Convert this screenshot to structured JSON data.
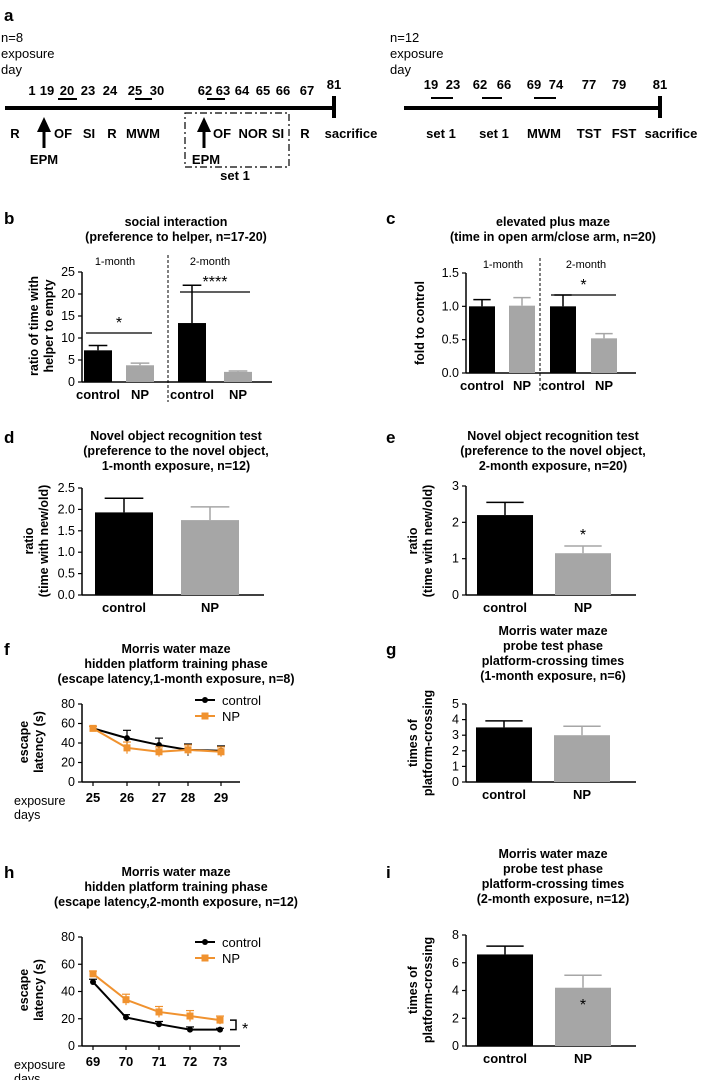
{
  "timeline": {
    "panel_label": "a",
    "left": {
      "n_label": "n=8",
      "exposure_label": "exposure",
      "day_label": "day",
      "days": [
        "1",
        "19",
        "20",
        "23",
        "24",
        "25",
        "30",
        "62",
        "63",
        "64",
        "65",
        "66",
        "67",
        "81"
      ],
      "events": [
        "R",
        "OF",
        "SI",
        "R",
        "MWM",
        "OF",
        "NOR",
        "SI",
        "R",
        "sacrifice"
      ],
      "epm1": "EPM",
      "epm2": "EPM",
      "set_label": "set 1"
    },
    "right": {
      "n_label": "n=12",
      "exposure_label": "exposure",
      "day_label": "day",
      "days": [
        "19",
        "23",
        "62",
        "66",
        "69",
        "74",
        "77",
        "79",
        "81"
      ],
      "events": [
        "set 1",
        "set 1",
        "MWM",
        "TST",
        "FST",
        "sacrifice"
      ]
    }
  },
  "chart_data": [
    {
      "panel": "b",
      "type": "bar",
      "title": [
        "social interaction",
        "(preference to helper, n=17-20)"
      ],
      "ylabel": [
        "ratio of time with",
        "helper to empty"
      ],
      "ylim": [
        0,
        25
      ],
      "yticks": [
        "0",
        "5",
        "10",
        "15",
        "20",
        "25"
      ],
      "categories": [
        "control",
        "NP",
        "control",
        "NP"
      ],
      "values": [
        7.2,
        3.8,
        13.4,
        2.3
      ],
      "errors": [
        1.1,
        0.5,
        8.6,
        0.2
      ],
      "colors": [
        "#000000",
        "#a6a6a6",
        "#000000",
        "#a6a6a6"
      ],
      "groups": [
        "1-month",
        "2-month"
      ],
      "significance": [
        "*",
        "****"
      ]
    },
    {
      "panel": "c",
      "type": "bar",
      "title": [
        "elevated plus maze",
        "(time in open arm/close arm, n=20)"
      ],
      "ylabel": [
        "fold to control"
      ],
      "ylim": [
        0,
        1.5
      ],
      "yticks": [
        "0.0",
        "0.5",
        "1.0",
        "1.5"
      ],
      "categories": [
        "control",
        "NP",
        "control",
        "NP"
      ],
      "values": [
        1.0,
        1.01,
        1.0,
        0.52
      ],
      "errors": [
        0.1,
        0.12,
        0.17,
        0.07
      ],
      "colors": [
        "#000000",
        "#a6a6a6",
        "#000000",
        "#a6a6a6"
      ],
      "groups": [
        "1-month",
        "2-month"
      ],
      "significance": [
        "*"
      ]
    },
    {
      "panel": "d",
      "type": "bar",
      "title": [
        "Novel object recognition test",
        "(preference to the novel object,",
        "1-month exposure, n=12)"
      ],
      "ylabel": [
        "ratio",
        "(time with new/old)"
      ],
      "ylim": [
        0,
        2.5
      ],
      "yticks": [
        "0.0",
        "0.5",
        "1.0",
        "1.5",
        "2.0",
        "2.5"
      ],
      "categories": [
        "control",
        "NP"
      ],
      "values": [
        1.93,
        1.75
      ],
      "errors": [
        0.33,
        0.31
      ],
      "colors": [
        "#000000",
        "#a6a6a6"
      ],
      "significance": []
    },
    {
      "panel": "e",
      "type": "bar",
      "title": [
        "Novel object recognition test",
        "(preference to the novel object,",
        "2-month exposure, n=20)"
      ],
      "ylabel": [
        "ratio",
        "(time with new/old)"
      ],
      "ylim": [
        0,
        3
      ],
      "yticks": [
        "0",
        "1",
        "2",
        "3"
      ],
      "categories": [
        "control",
        "NP"
      ],
      "values": [
        2.2,
        1.15
      ],
      "errors": [
        0.35,
        0.2
      ],
      "colors": [
        "#000000",
        "#a6a6a6"
      ],
      "significance": [
        "*"
      ]
    },
    {
      "panel": "f",
      "type": "line",
      "title": [
        "Morris water maze",
        "hidden platform training phase",
        "(escape latency,1-month exposure, n=8)"
      ],
      "ylabel": [
        "escape",
        "latency (s)"
      ],
      "xlabel": [
        "exposure",
        "days"
      ],
      "x": [
        "25",
        "26",
        "27",
        "28",
        "29"
      ],
      "ylim": [
        0,
        80
      ],
      "yticks": [
        "0",
        "20",
        "40",
        "60",
        "80"
      ],
      "series": [
        {
          "name": "control",
          "color": "#000000",
          "values": [
            55,
            45,
            38,
            33,
            32
          ],
          "errors": [
            2,
            8,
            7,
            6,
            5
          ]
        },
        {
          "name": "NP",
          "color": "#f0922f",
          "values": [
            55,
            35,
            31,
            33,
            31
          ],
          "errors": [
            2,
            6,
            5,
            5,
            5
          ]
        }
      ],
      "annotation": ""
    },
    {
      "panel": "g",
      "type": "bar",
      "title": [
        "Morris water maze",
        "probe test phase",
        "platform-crossing times",
        "(1-month exposure, n=6)"
      ],
      "ylabel": [
        "times of",
        "platform-crossing"
      ],
      "ylim": [
        0,
        5
      ],
      "yticks": [
        "0",
        "1",
        "2",
        "3",
        "4",
        "5"
      ],
      "categories": [
        "control",
        "NP"
      ],
      "values": [
        3.5,
        3.0
      ],
      "errors": [
        0.42,
        0.57
      ],
      "colors": [
        "#000000",
        "#a6a6a6"
      ],
      "significance": []
    },
    {
      "panel": "h",
      "type": "line",
      "title": [
        "Morris water maze",
        "hidden platform training phase",
        "(escape latency,2-month exposure, n=12)"
      ],
      "ylabel": [
        "escape",
        "latency (s)"
      ],
      "xlabel": [
        "exposure",
        "days"
      ],
      "x": [
        "69",
        "70",
        "71",
        "72",
        "73"
      ],
      "ylim": [
        0,
        80
      ],
      "yticks": [
        "0",
        "20",
        "40",
        "60",
        "80"
      ],
      "series": [
        {
          "name": "control",
          "color": "#000000",
          "values": [
            47,
            21,
            16,
            12,
            12
          ],
          "errors": [
            2,
            2,
            2,
            2,
            1
          ]
        },
        {
          "name": "NP",
          "color": "#f0922f",
          "values": [
            53,
            34,
            25,
            22,
            19
          ],
          "errors": [
            2,
            4,
            4,
            4,
            3
          ]
        }
      ],
      "annotation": "*"
    },
    {
      "panel": "i",
      "type": "bar",
      "title": [
        "Morris water maze",
        "probe test phase",
        "platform-crossing times",
        "(2-month exposure, n=12)"
      ],
      "ylabel": [
        "times of",
        "platform-crossing"
      ],
      "ylim": [
        0,
        8
      ],
      "yticks": [
        "0",
        "2",
        "4",
        "6",
        "8"
      ],
      "categories": [
        "control",
        "NP"
      ],
      "values": [
        6.6,
        4.2
      ],
      "errors": [
        0.6,
        0.9
      ],
      "colors": [
        "#000000",
        "#a6a6a6"
      ],
      "significance": [
        "*"
      ]
    }
  ]
}
